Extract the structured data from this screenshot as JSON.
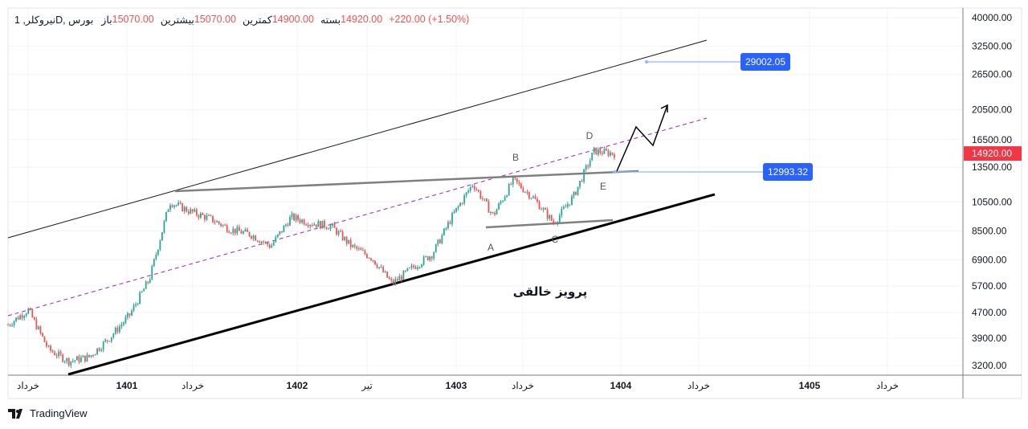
{
  "header": {
    "symbol": "نیروکلر, 1D, بورس",
    "open_label": "باز",
    "open": "15070.00",
    "high_label": "بیشترین",
    "high": "15070.00",
    "low_label": "کمترین",
    "low": "14900.00",
    "close_label": "بسته",
    "close": "14920.00",
    "change": "+220.00 (+1.50%)"
  },
  "brand": "TradingView",
  "colors": {
    "up": "#26a69a",
    "down": "#ef5350",
    "label_blue": "#2962ff",
    "channel_mid": "#9c27b0",
    "resistance": "#808080"
  },
  "chart_data": {
    "type": "candlestick",
    "y_scale": "log",
    "ylim": [
      3000,
      42000
    ],
    "y_ticks": [
      "40000.00",
      "32500.00",
      "26500.00",
      "20500.00",
      "16500.00",
      "13500.00",
      "10500.00",
      "8500.00",
      "6900.00",
      "5700.00",
      "4700.00",
      "3900.00",
      "3200.00"
    ],
    "x_ticks": [
      "خرداد",
      "1401",
      "خرداد",
      "1402",
      "تیر",
      "1403",
      "خرداد",
      "1404",
      "خرداد",
      "1405",
      "خرداد"
    ],
    "approx_price_path": [
      4300,
      4800,
      3600,
      3300,
      3400,
      3900,
      4600,
      6000,
      10500,
      9800,
      9300,
      8600,
      8300,
      7600,
      9400,
      9000,
      8800,
      7600,
      7000,
      5800,
      6500,
      7200,
      9500,
      12000,
      9500,
      12300,
      10800,
      9000,
      11000,
      15200,
      14920
    ],
    "last_price": "14920.00",
    "price_labels": [
      "29002.05",
      "12993.32"
    ],
    "wave_labels": [
      "A",
      "B",
      "C",
      "D",
      "E"
    ],
    "annotation_text": "پرویز خالقی",
    "grid": true
  }
}
